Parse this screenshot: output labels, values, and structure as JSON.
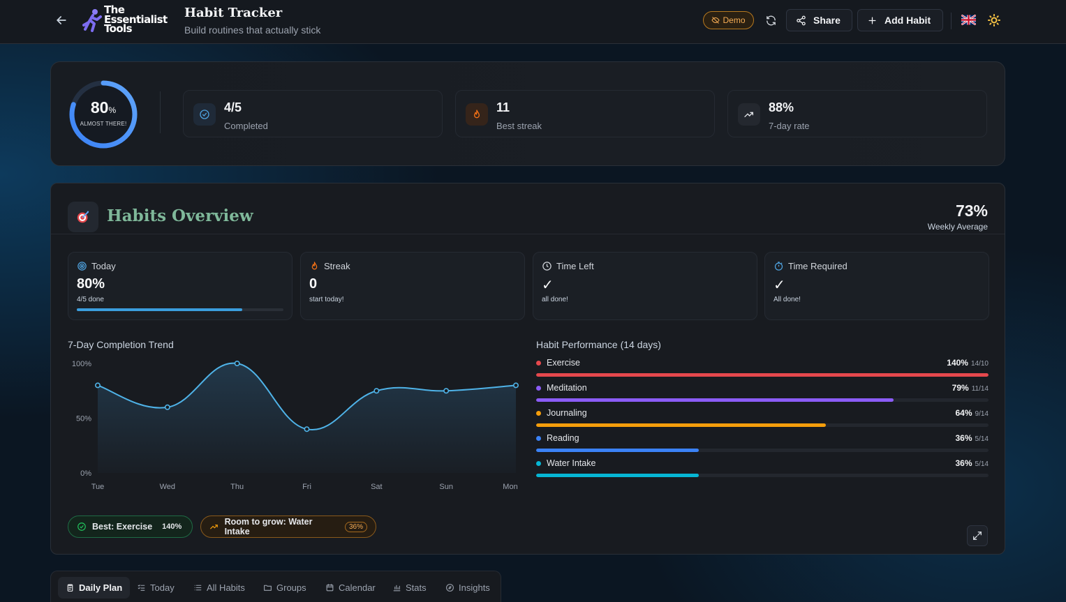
{
  "header": {
    "logo_text": [
      "The",
      "Essentialist",
      "Tools"
    ],
    "title": "Habit Tracker",
    "subtitle": "Build routines that actually stick",
    "demo_label": "Demo",
    "share_label": "Share",
    "add_label": "Add Habit",
    "language_flag": "uk-flag",
    "theme_icon": "sun-icon"
  },
  "summary": {
    "ring_value": "80",
    "ring_unit": "%",
    "ring_progress": 0.8,
    "ring_label": "ALMOST THERE!",
    "stats": [
      {
        "icon": "check-circle-icon",
        "value": "4/5",
        "label": "Completed"
      },
      {
        "icon": "flame-icon",
        "value": "11",
        "label": "Best streak"
      },
      {
        "icon": "trending-up-icon",
        "value": "88%",
        "label": "7-day rate"
      }
    ]
  },
  "overview": {
    "title": "Habits Overview",
    "weekly_avg_value": "73%",
    "weekly_avg_label": "Weekly Average",
    "minis": [
      {
        "icon": "target-icon",
        "label": "Today",
        "value": "80%",
        "sub": "4/5 done",
        "progress": 0.8
      },
      {
        "icon": "flame-icon",
        "label": "Streak",
        "value": "0",
        "sub": "start today!"
      },
      {
        "icon": "clock-icon",
        "label": "Time Left",
        "value": "✓",
        "sub": "all done!"
      },
      {
        "icon": "timer-icon",
        "label": "Time Required",
        "value": "✓",
        "sub": "All done!"
      }
    ],
    "trend_title": "7-Day Completion Trend",
    "performance_title": "Habit Performance (14 days)",
    "best_chip_label": "Best: Exercise",
    "best_chip_value": "140%",
    "grow_chip_label": "Room to grow: Water Intake",
    "grow_chip_value": "36%"
  },
  "chart_data": [
    {
      "type": "area",
      "title": "7-Day Completion Trend",
      "categories": [
        "Tue",
        "Wed",
        "Thu",
        "Fri",
        "Sat",
        "Sun",
        "Mon"
      ],
      "values": [
        80,
        60,
        100,
        40,
        75,
        75,
        80
      ],
      "ylim": [
        0,
        100
      ],
      "yticks": [
        "100%",
        "50%",
        "0%"
      ],
      "color": "#4fb3e8"
    },
    {
      "type": "bar",
      "title": "Habit Performance (14 days)",
      "series": [
        {
          "name": "Exercise",
          "percent": "140%",
          "ratio": "14/10",
          "value": 140,
          "color": "#e5484d"
        },
        {
          "name": "Meditation",
          "percent": "79%",
          "ratio": "11/14",
          "value": 79,
          "color": "#8b5cf6"
        },
        {
          "name": "Journaling",
          "percent": "64%",
          "ratio": "9/14",
          "value": 64,
          "color": "#f59e0b"
        },
        {
          "name": "Reading",
          "percent": "36%",
          "ratio": "5/14",
          "value": 36,
          "color": "#3b82f6"
        },
        {
          "name": "Water Intake",
          "percent": "36%",
          "ratio": "5/14",
          "value": 36,
          "color": "#06b6d4"
        }
      ]
    }
  ],
  "tabs": [
    {
      "label": "Daily Plan",
      "icon": "clipboard-icon",
      "active": true
    },
    {
      "label": "Today",
      "icon": "list-check-icon",
      "active": false
    },
    {
      "label": "All Habits",
      "icon": "list-icon",
      "active": false
    },
    {
      "label": "Groups",
      "icon": "folder-icon",
      "active": false
    },
    {
      "label": "Calendar",
      "icon": "calendar-icon",
      "active": false
    },
    {
      "label": "Stats",
      "icon": "bar-chart-icon",
      "active": false
    },
    {
      "label": "Insights",
      "icon": "compass-icon",
      "active": false
    }
  ]
}
